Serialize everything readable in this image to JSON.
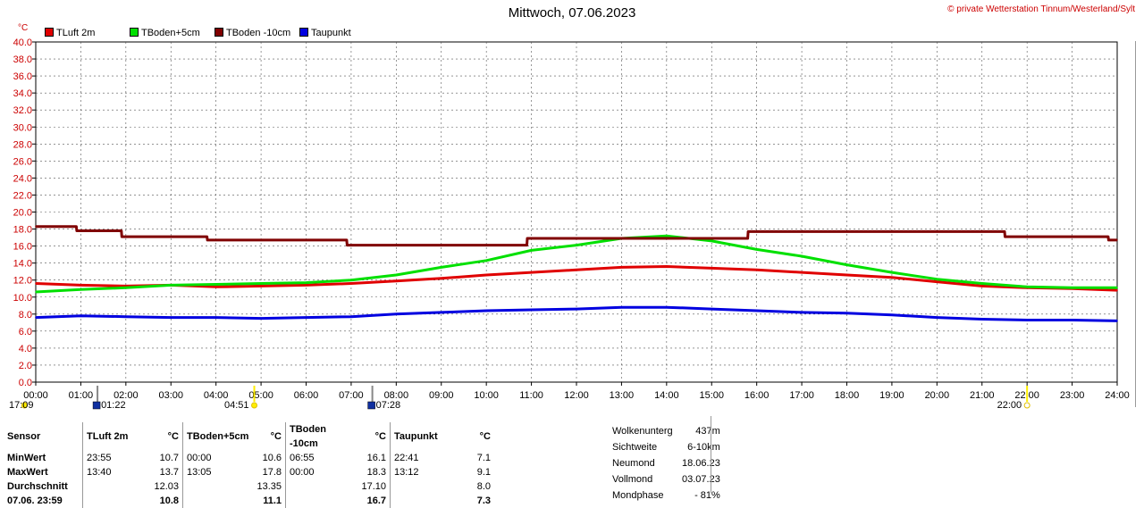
{
  "title": "Mittwoch, 07.06.2023",
  "copyright": "© private Wetterstation Tinnum/Westerland/Sylt",
  "unit_label": "°C",
  "chart_data": {
    "type": "line",
    "title": "Mittwoch, 07.06.2023",
    "ylabel": "°C",
    "ylim": [
      0,
      40
    ],
    "y_ticks": [
      "0.0",
      "2.0",
      "4.0",
      "6.0",
      "8.0",
      "10.0",
      "12.0",
      "14.0",
      "16.0",
      "18.0",
      "20.0",
      "22.0",
      "24.0",
      "26.0",
      "28.0",
      "30.0",
      "32.0",
      "34.0",
      "36.0",
      "38.0",
      "40.0"
    ],
    "x_ticks": [
      "00:00",
      "01:00",
      "02:00",
      "03:00",
      "04:00",
      "05:00",
      "06:00",
      "07:00",
      "08:00",
      "09:00",
      "10:00",
      "11:00",
      "12:00",
      "13:00",
      "14:00",
      "15:00",
      "16:00",
      "17:00",
      "18:00",
      "19:00",
      "20:00",
      "21:00",
      "22:00",
      "23:00",
      "24:00"
    ],
    "xlim": [
      0,
      24
    ],
    "grid": true,
    "legend_position": "top-left",
    "series": [
      {
        "name": "TLuft 2m",
        "color": "#e00000",
        "x": [
          0,
          1,
          2,
          3,
          4,
          5,
          6,
          7,
          8,
          9,
          10,
          11,
          12,
          13,
          14,
          15,
          16,
          17,
          18,
          19,
          20,
          21,
          22,
          23,
          24
        ],
        "values": [
          11.6,
          11.4,
          11.3,
          11.4,
          11.2,
          11.3,
          11.4,
          11.6,
          11.9,
          12.2,
          12.6,
          12.9,
          13.2,
          13.5,
          13.6,
          13.4,
          13.2,
          12.9,
          12.6,
          12.3,
          11.8,
          11.3,
          11.1,
          11.0,
          10.8
        ]
      },
      {
        "name": "TBoden+5cm",
        "color": "#00e000",
        "x": [
          0,
          1,
          2,
          3,
          4,
          5,
          6,
          7,
          8,
          9,
          10,
          11,
          12,
          13,
          14,
          15,
          16,
          17,
          18,
          19,
          20,
          21,
          22,
          23,
          24
        ],
        "values": [
          10.6,
          10.9,
          11.1,
          11.4,
          11.5,
          11.6,
          11.7,
          12.0,
          12.6,
          13.5,
          14.3,
          15.5,
          16.1,
          16.9,
          17.2,
          16.6,
          15.6,
          14.8,
          13.8,
          12.9,
          12.1,
          11.6,
          11.2,
          11.1,
          11.1
        ]
      },
      {
        "name": "TBoden -10cm",
        "color": "#800000",
        "x": [
          0,
          0.9,
          0.91,
          1.9,
          1.91,
          3.8,
          3.81,
          6.9,
          6.91,
          10.9,
          10.91,
          15.8,
          15.81,
          21.5,
          21.51,
          23.8,
          23.81,
          24
        ],
        "values": [
          18.3,
          18.3,
          17.8,
          17.8,
          17.1,
          17.1,
          16.7,
          16.7,
          16.1,
          16.1,
          16.9,
          16.9,
          17.7,
          17.7,
          17.1,
          17.1,
          16.7,
          16.7
        ]
      },
      {
        "name": "Taupunkt",
        "color": "#0000e0",
        "x": [
          0,
          1,
          2,
          3,
          4,
          5,
          6,
          7,
          8,
          9,
          10,
          11,
          12,
          13,
          14,
          15,
          16,
          17,
          18,
          19,
          20,
          21,
          22,
          23,
          24
        ],
        "values": [
          7.6,
          7.8,
          7.7,
          7.6,
          7.6,
          7.5,
          7.6,
          7.7,
          8.0,
          8.2,
          8.4,
          8.5,
          8.6,
          8.8,
          8.8,
          8.6,
          8.4,
          8.2,
          8.1,
          7.9,
          7.6,
          7.4,
          7.3,
          7.3,
          7.2
        ]
      }
    ]
  },
  "astro_markers": [
    {
      "label": "17:09",
      "pos": -0.25,
      "kind": "sun"
    },
    {
      "label": "01:22",
      "pos": 1.37,
      "kind": "moon"
    },
    {
      "label": "04:51",
      "pos": 4.85,
      "kind": "sun"
    },
    {
      "label": "07:28",
      "pos": 7.47,
      "kind": "moon"
    },
    {
      "label": "22:00",
      "pos": 22.0,
      "kind": "sun-set"
    }
  ],
  "stats": {
    "headers": {
      "sensor": "Sensor",
      "col1": "TLuft 2m",
      "col2": "TBoden+5cm",
      "col3": "TBoden -10cm",
      "col4": "Taupunkt",
      "unit": "°C"
    },
    "rows": [
      {
        "label": "MinWert",
        "c1t": "23:55",
        "c1v": "10.7",
        "c2t": "00:00",
        "c2v": "10.6",
        "c3t": "06:55",
        "c3v": "16.1",
        "c4t": "22:41",
        "c4v": "7.1"
      },
      {
        "label": "MaxWert",
        "c1t": "13:40",
        "c1v": "13.7",
        "c2t": "13:05",
        "c2v": "17.8",
        "c3t": "00:00",
        "c3v": "18.3",
        "c4t": "13:12",
        "c4v": "9.1"
      },
      {
        "label": "Durchschnitt",
        "c1t": "",
        "c1v": "12.03",
        "c2t": "",
        "c2v": "13.35",
        "c3t": "",
        "c3v": "17.10",
        "c4t": "",
        "c4v": "8.0"
      },
      {
        "label": "07.06. 23:59",
        "c1t": "",
        "c1v": "10.8",
        "c2t": "",
        "c2v": "11.1",
        "c3t": "",
        "c3v": "16.7",
        "c4t": "",
        "c4v": "7.3"
      }
    ]
  },
  "info": [
    {
      "k": "Wolkenunterg",
      "v": "437m"
    },
    {
      "k": "Sichtweite",
      "v": "6-10km"
    },
    {
      "k": "Neumond",
      "v": "18.06.23"
    },
    {
      "k": "Vollmond",
      "v": "03.07.23"
    },
    {
      "k": "Mondphase",
      "v": "- 81%"
    }
  ]
}
